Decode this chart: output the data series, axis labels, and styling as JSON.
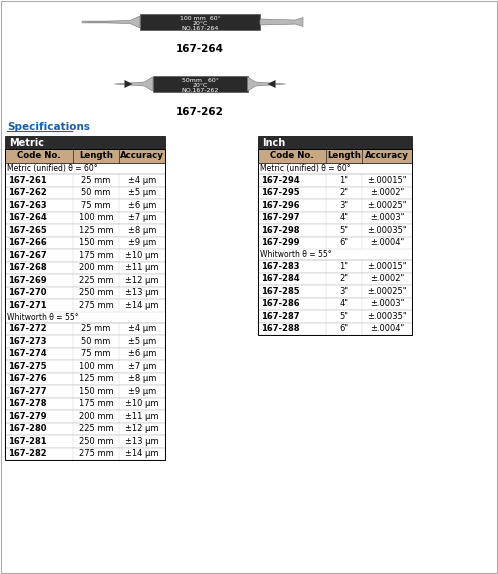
{
  "title_image1": "167-264",
  "title_image2": "167-262",
  "image1_text": [
    "100 mm  60°",
    "20°C",
    "NO.167-264"
  ],
  "image2_text": [
    "50mm   60°",
    "20°C",
    "NO.167-262"
  ],
  "specs_title": "Specifications",
  "metric_title": "Metric",
  "inch_title": "Inch",
  "header": [
    "Code No.",
    "Length",
    "Accuracy"
  ],
  "metric_section1_label": "Metric (unified) θ = 60°",
  "metric_section1": [
    [
      "167-261",
      "25 mm",
      "±4 μm"
    ],
    [
      "167-262",
      "50 mm",
      "±5 μm"
    ],
    [
      "167-263",
      "75 mm",
      "±6 μm"
    ],
    [
      "167-264",
      "100 mm",
      "±7 μm"
    ],
    [
      "167-265",
      "125 mm",
      "±8 μm"
    ],
    [
      "167-266",
      "150 mm",
      "±9 μm"
    ],
    [
      "167-267",
      "175 mm",
      "±10 μm"
    ],
    [
      "167-268",
      "200 mm",
      "±11 μm"
    ],
    [
      "167-269",
      "225 mm",
      "±12 μm"
    ],
    [
      "167-270",
      "250 mm",
      "±13 μm"
    ],
    [
      "167-271",
      "275 mm",
      "±14 μm"
    ]
  ],
  "metric_section2_label": "Whitworth θ = 55°",
  "metric_section2": [
    [
      "167-272",
      "25 mm",
      "±4 μm"
    ],
    [
      "167-273",
      "50 mm",
      "±5 μm"
    ],
    [
      "167-274",
      "75 mm",
      "±6 μm"
    ],
    [
      "167-275",
      "100 mm",
      "±7 μm"
    ],
    [
      "167-276",
      "125 mm",
      "±8 μm"
    ],
    [
      "167-277",
      "150 mm",
      "±9 μm"
    ],
    [
      "167-278",
      "175 mm",
      "±10 μm"
    ],
    [
      "167-279",
      "200 mm",
      "±11 μm"
    ],
    [
      "167-280",
      "225 mm",
      "±12 μm"
    ],
    [
      "167-281",
      "250 mm",
      "±13 μm"
    ],
    [
      "167-282",
      "275 mm",
      "±14 μm"
    ]
  ],
  "inch_section1_label": "Metric (unified) θ = 60°",
  "inch_section1": [
    [
      "167-294",
      "1\"",
      "±.00015\""
    ],
    [
      "167-295",
      "2\"",
      "±.0002\""
    ],
    [
      "167-296",
      "3\"",
      "±.00025\""
    ],
    [
      "167-297",
      "4\"",
      "±.0003\""
    ],
    [
      "167-298",
      "5\"",
      "±.00035\""
    ],
    [
      "167-299",
      "6\"",
      "±.0004\""
    ]
  ],
  "inch_section2_label": "Whitworth θ = 55°",
  "inch_section2": [
    [
      "167-283",
      "1\"",
      "±.00015\""
    ],
    [
      "167-284",
      "2\"",
      "±.0002\""
    ],
    [
      "167-285",
      "3\"",
      "±.00025\""
    ],
    [
      "167-286",
      "4\"",
      "±.0003\""
    ],
    [
      "167-287",
      "5\"",
      "±.00035\""
    ],
    [
      "167-288",
      "6\"",
      "±.0004\""
    ]
  ],
  "bg_color": "#ffffff",
  "table_header_bg": "#c8a882",
  "dark_header_bg": "#2b2b2b",
  "specs_link_color": "#1a5fa8",
  "border_color": "#000000",
  "text_color": "#000000"
}
